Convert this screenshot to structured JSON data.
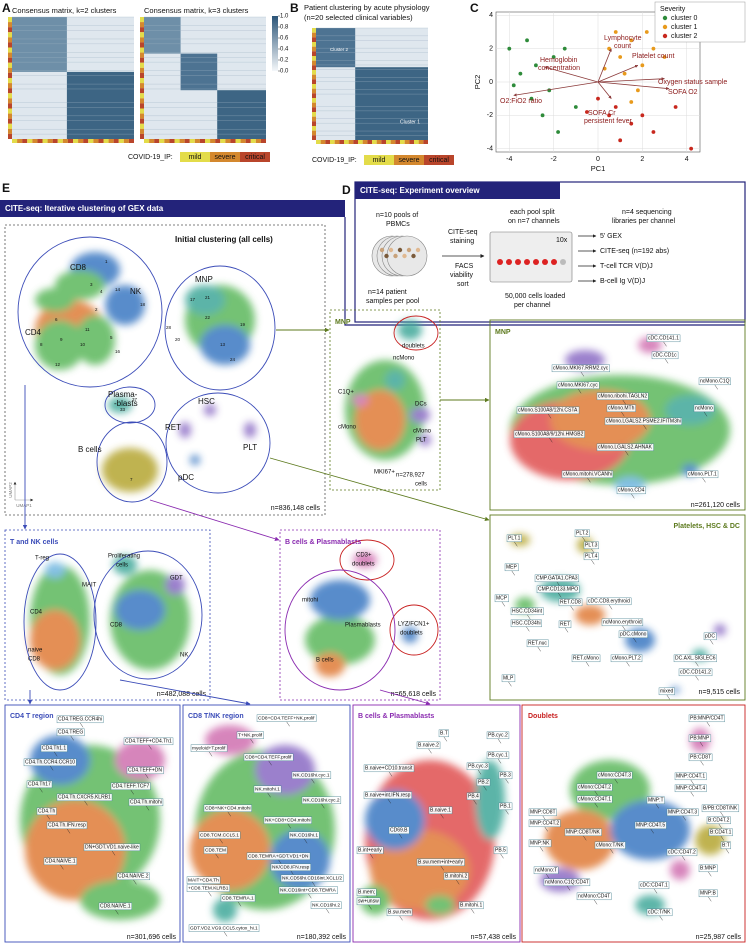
{
  "panel_a": {
    "letter": "A",
    "titles": [
      "Consensus matrix, k=2 clusters",
      "Consensus matrix, k=3 clusters"
    ],
    "colorbar_ticks": [
      {
        "value": 1,
        "label": "1.0"
      },
      0.8,
      0.6,
      0.4,
      0.2,
      {
        "value": 0,
        "label": "0.0"
      }
    ],
    "legend_title": "COVID-19_IP:",
    "legend": [
      "mild",
      "severe",
      "critical"
    ],
    "legend_colors": [
      "#e3dc4a",
      "#d4882e",
      "#b9452b"
    ]
  },
  "panel_b": {
    "letter": "B",
    "title": "Patient clustering by acute physiology",
    "subtitle": "(n=20 selected clinical variables)",
    "cluster_labels": [
      "Cluster 2",
      "Cluster 1"
    ],
    "legend_title": "COVID-19_IP:",
    "legend": [
      "mild",
      "severe",
      "critical"
    ],
    "legend_colors": [
      "#e3dc4a",
      "#d4882e",
      "#b9452b"
    ]
  },
  "panel_c": {
    "letter": "C",
    "type": "scatter",
    "xlabel": "PC1",
    "ylabel": "PC2",
    "xlim": [
      -4.6,
      4.6
    ],
    "ylim": [
      -4.2,
      4.2
    ],
    "xticks": [
      -4,
      -2,
      0,
      2,
      4
    ],
    "yticks": [
      -4,
      -2,
      0,
      2,
      4
    ],
    "legend_title": "Severity",
    "series": [
      {
        "name": "cluster 0",
        "color": "#2e8b3a",
        "x": [
          -4,
          -3.5,
          -3,
          -2.5,
          -2,
          -3.2,
          -1.8,
          -2.2,
          -1,
          -3.8,
          -1.5,
          -2.8
        ],
        "y": [
          2,
          0.5,
          -1,
          -2,
          1.5,
          2.5,
          -3,
          -0.5,
          -1.5,
          -0.2,
          2,
          1
        ]
      },
      {
        "name": "cluster 1",
        "color": "#e89a1c",
        "x": [
          0.5,
          1,
          1.5,
          2,
          1.2,
          0.8,
          2.5,
          1.8,
          3,
          0.3,
          2.2,
          1.5
        ],
        "y": [
          2,
          1.5,
          2.5,
          1,
          0.5,
          3,
          2,
          -0.5,
          1.5,
          0.8,
          3,
          -1.2
        ]
      },
      {
        "name": "cluster 2",
        "color": "#c8281e",
        "x": [
          0.5,
          1.5,
          2.5,
          0,
          1,
          2,
          3.5,
          4.2,
          0.8,
          -0.5
        ],
        "y": [
          -2,
          -2.5,
          -3,
          -1,
          -3.5,
          -2,
          -1.5,
          -4,
          -1.5,
          -1.8
        ]
      }
    ],
    "loadings": [
      {
        "label": [
          "Hemoglobin",
          "concentration"
        ],
        "x": -2.4,
        "y": 0.9
      },
      {
        "label": [
          "Lymphocyte",
          "count"
        ],
        "x": 0.6,
        "y": 2.0
      },
      {
        "label": [
          "Platelet count"
        ],
        "x": 1.8,
        "y": 1.0
      },
      {
        "label": [
          "Oxygen status sample"
        ],
        "x": 3.0,
        "y": 0.2
      },
      {
        "label": [
          "SOFA O2"
        ],
        "x": 3.2,
        "y": -0.4
      },
      {
        "label": [
          "O2:FiO2 ratio"
        ],
        "x": -3.8,
        "y": -0.8
      },
      {
        "label": [
          "SOFA Cr",
          "persistent fever"
        ],
        "x": 0.6,
        "y": -1.0
      }
    ]
  },
  "panel_d": {
    "letter": "D",
    "header": "CITE-seq: Experiment overview",
    "texts": [
      "n=10 pools of",
      "PBMCs",
      "n=14 patient",
      "samples per pool",
      "CITE-seq",
      "staining",
      "FACS",
      "viability",
      "sort",
      "each pool split",
      "on n=7 channels",
      "50,000 cells loaded",
      "per channel",
      "n=4 sequencing",
      "libraries per channel",
      "10x"
    ],
    "outputs": [
      "5' GEX",
      "CITE-seq (n=192 abs)",
      "T-cell TCR V(D)J",
      "B-cell Ig V(D)J"
    ]
  },
  "panel_e": {
    "letter": "E",
    "header": "CITE-seq: Iterative clustering of GEX data",
    "initial": {
      "title": "Initial clustering (all cells)",
      "labels": [
        "CD8",
        "NK",
        "CD4",
        "MNP",
        "Plasma-",
        "-blasts",
        "B cells",
        "HSC",
        "RET",
        "PLT",
        "pDC"
      ],
      "numbers": [
        "1",
        "14",
        "18",
        "3",
        "4",
        "2",
        "6",
        "9",
        "10",
        "11",
        "5",
        "16",
        "12",
        "8",
        "22",
        "13",
        "24",
        "19",
        "17",
        "21",
        "28",
        "20",
        "7",
        "37",
        "33"
      ],
      "count": "n=836,148 cells",
      "axes": [
        "UMAP2",
        "UMAP1"
      ]
    },
    "mnp_overview": {
      "title": "MNP",
      "labels": [
        "doublets",
        "ncMono",
        "C1Q+",
        "cMono",
        "DCs",
        "cMono",
        "PLT",
        "MKI67+",
        "n=278,927",
        "cells"
      ]
    },
    "mnp_zoom": {
      "title": "MNP",
      "labels": [
        "cDC.CD141.1",
        "cDC.CD1c",
        "cMono.MKI67.RRM2.cyc",
        "cMono.MKI67.cyc",
        "ncMono.C1Q",
        "cMono.ribohi.TAGLN2",
        "cMono.MTh",
        "ncMono",
        "cMono.S100A8/12hi.CSTA",
        "cMono.LGALS2.PSME2.IFITM3hi",
        "cMono.S100A8/9/12hi.HMGB2",
        "cMono.LGALS2.AHNAK",
        "cMono.mitohi.VCANhi",
        "cMono.PLT.1",
        "cMono.CD4"
      ],
      "count": "n=261,120 cells"
    },
    "t_nk": {
      "title": "T and NK cells",
      "labels": [
        "T-reg",
        "Proliferating",
        "cells",
        "MAIT",
        "GDT",
        "CD4",
        "CD8",
        "naive",
        "CD8",
        "NK"
      ],
      "count": "n=482,088 cells"
    },
    "b_overview": {
      "title": "B cells & Plasmablasts",
      "labels": [
        "CD3+",
        "doublets",
        "mitohi",
        "Plasmablasts",
        "LYZ/FCN1+",
        "doublets",
        "B cells"
      ],
      "count": "n=65,618 cells"
    },
    "platelets": {
      "title": "Platelets, HSC & DC",
      "labels": [
        "PLT.1",
        "PLT.2",
        "PLT.3",
        "PLT.4",
        "MEP",
        "CMP.GATA1.CPA3",
        "MCP",
        "CMP.CD133.MPO",
        "HSC.CD34int",
        "HSC.CD34hi",
        "RET.CD8",
        "cDC.CD8.erythroid",
        "RET",
        "ncMono.erythroid",
        "pDC.cMono",
        "pDC",
        "RET.nuc",
        "RET.cMono",
        "cMono.PLT.2",
        "DC.AXL.SIGLEC6",
        "cDC.CD141.2",
        "MLP",
        "mixed"
      ],
      "count": "n=9,515 cells"
    },
    "cd4_region": {
      "title": "CD4 T region",
      "labels": [
        "CD4.TREG.CCR4hi",
        "CD4.TREG",
        "CD4.TEFF+CD4.Th1",
        "CD4.TEFF+DN",
        "CD4.Th1.1",
        "CD4.Th.CCR4.CCR10",
        "CD4.TEFF.TCF7",
        "CD4.Th17",
        "CD4.Th.CXCR5.KLRB1",
        "CD4.Th.mitohi",
        "CD4.Th",
        "CD4.Th.IFN.resp",
        "DN+GDT.VD1.naive-like",
        "CD4.NAIVE.1",
        "CD4.NAIVE.2",
        "CD8.NAIVE.1"
      ],
      "count": "n=301,696 cells"
    },
    "cd8_region": {
      "title": "CD8 T/NK region",
      "labels": [
        "CD8+CD4.TEFF+NK.prolif",
        "T+NK.prolif",
        "myeloid+T.prolif",
        "CD8+CD4.TEFF.prolif",
        "NK.CD16hi.cyc.1",
        "NK.mitohi.1",
        "NK.CD16hi.cyc.2",
        "CD8+NK+CD4.mitohi",
        "NK+CD8+CD4.mitohi",
        "CD8.TCM.CCL5.1",
        "NK.CD16hi.1",
        "CD8.TEM",
        "CD8.TEMRA+GDT.VD1+DN",
        "NK/CD8.IFN.resp",
        "NK.CD56hi.CD16int.XCL1/2",
        "MAIT+CD4.Th",
        "+CD8.TEM.KLRB1",
        "NK.CD16int+CD8.TEMRA",
        "CD8.TEMRA.1",
        "NK.CD16hi.2",
        "GDT.VD2.VG9.CCL5.cytox_hi.1"
      ],
      "count": "n=180,392 cells"
    },
    "b_region": {
      "title": "B cells & Plasmablasts",
      "labels": [
        "B.T",
        "PB.cyc.2",
        "B.naive.2",
        "PB.cyc.1",
        "PB.cyc.3",
        "B.naive+CD10.transit",
        "PB.2",
        "PB.3",
        "PB.4",
        "PB.1",
        "B.naive+int.IFN.resp",
        "B.naive.1",
        "CD69.B",
        "B.int+early",
        "B.sw.mem+int+early",
        "PB.5",
        "B.mitohi.2",
        "B.mem;",
        "sw+unsw",
        "B.sw.mem",
        "B.mitohi.1"
      ],
      "count": "n=57,438 cells"
    },
    "doublets": {
      "title": "Doublets",
      "labels": [
        "PB:MNP/CD4T",
        "PB:MNP",
        "PB:CD8T",
        "cMono:CD4T.3",
        "MNP:CD4T.1",
        "cMono:CD4T.2",
        "MNP:CD4T.4",
        "cMono:CD4T.1",
        "MNP:T",
        "B/PB:CD8T/NK",
        "MNP:CD8T",
        "MNP:CD4T.3",
        "B:CD4T.2",
        "MNP:CD4T.2",
        "MNP:CD8T/NK",
        "MNP:CD4T.5",
        "B:CD4T.1",
        "MNP:NK",
        "cMono:T/NK",
        "B:T",
        "cDC:CD4T.2",
        "ncMono:T",
        "B:MNP",
        "ncMono.C1Q:CD4T",
        "MNP:B",
        "cDC:CD4T.1",
        "ncMono:CD4T",
        "cDC:T/NK"
      ],
      "count": "n=25,987 cells"
    }
  }
}
